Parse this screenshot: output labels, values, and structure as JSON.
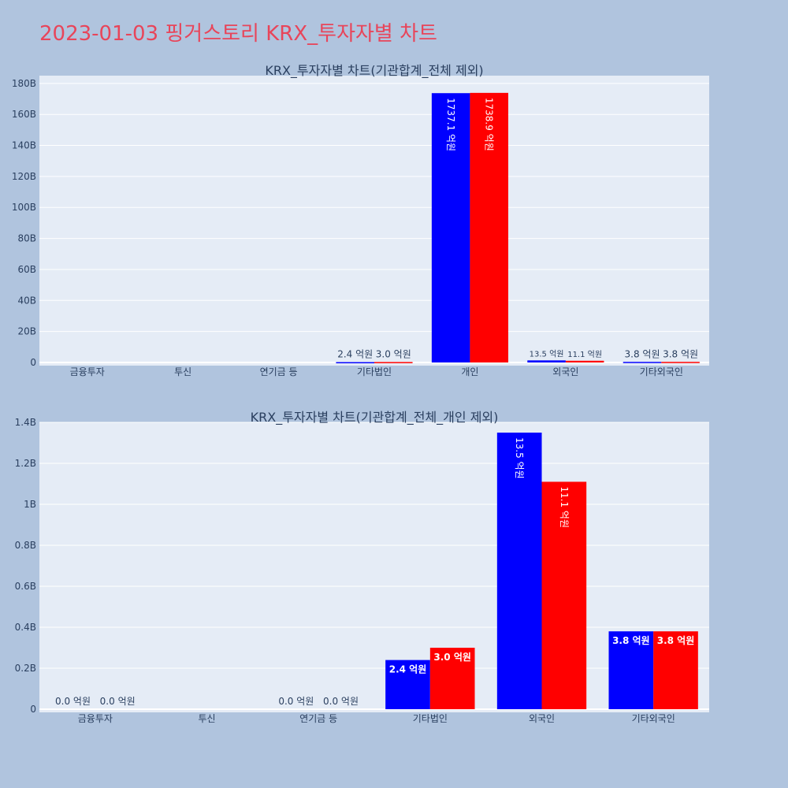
{
  "title": "2023-01-03 핑거스토리 KRX_투자자별 차트",
  "colors": {
    "buy": "#0000ff",
    "sell": "#ff0000",
    "title": "#e8455a",
    "background": "#b0c4de",
    "plot": "#e5ecf6"
  },
  "chart_data": [
    {
      "type": "bar",
      "title": "KRX_투자자별 차트(기관합계_전체 제외)",
      "categories": [
        "금융투자",
        "투신",
        "연기금 등",
        "기타법인",
        "개인",
        "외국인",
        "기타외국인"
      ],
      "ylim": [
        0,
        185000000000
      ],
      "yticks": [
        0,
        20000000000,
        40000000000,
        60000000000,
        80000000000,
        100000000000,
        120000000000,
        140000000000,
        160000000000,
        180000000000
      ],
      "ytick_labels": [
        "0",
        "20B",
        "40B",
        "60B",
        "80B",
        "100B",
        "120B",
        "140B",
        "160B",
        "180B"
      ],
      "grid": true,
      "series": [
        {
          "values": [
            0,
            0,
            0,
            240000000,
            173710000000,
            1350000000,
            380000000
          ],
          "labels": [
            "",
            "",
            "",
            "2.4 억원",
            "1737.1 억원",
            "13.5 억원",
            "3.8 억원"
          ]
        },
        {
          "values": [
            0,
            0,
            0,
            300000000,
            173890000000,
            1110000000,
            380000000
          ],
          "labels": [
            "",
            "",
            "",
            "3.0 억원",
            "1738.9 억원",
            "11.1 억원",
            "3.8 억원"
          ]
        }
      ]
    },
    {
      "type": "bar",
      "title": "KRX_투자자별 차트(기관합계_전체_개인 제외)",
      "categories": [
        "금융투자",
        "투신",
        "연기금 등",
        "기타법인",
        "외국인",
        "기타외국인"
      ],
      "ylim": [
        0,
        1400000000
      ],
      "yticks": [
        0,
        200000000,
        400000000,
        600000000,
        800000000,
        1000000000,
        1200000000,
        1400000000
      ],
      "ytick_labels": [
        "0",
        "0.2B",
        "0.4B",
        "0.6B",
        "0.8B",
        "1B",
        "1.2B",
        "1.4B"
      ],
      "grid": true,
      "series": [
        {
          "values": [
            0,
            0,
            0,
            240000000,
            1350000000,
            380000000
          ],
          "labels": [
            "0.0 억원",
            "",
            "0.0 억원",
            "2.4 억원",
            "13.5 억원",
            "3.8 억원"
          ]
        },
        {
          "values": [
            0,
            0,
            0,
            300000000,
            1110000000,
            380000000
          ],
          "labels": [
            "0.0 억원",
            "",
            "0.0 억원",
            "3.0 억원",
            "11.1 억원",
            "3.8 억원"
          ]
        }
      ]
    }
  ]
}
